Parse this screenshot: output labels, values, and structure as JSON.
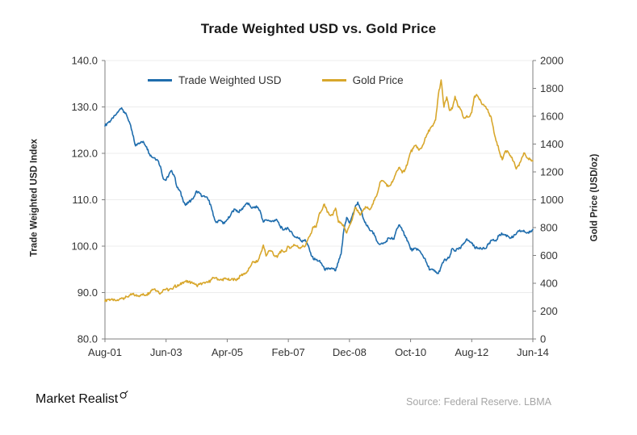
{
  "title": "Trade Weighted USD vs. Gold Price",
  "footer": {
    "brand": "Market Realist",
    "source": "Source: Federal Reserve. LBMA"
  },
  "chart_data": {
    "type": "line",
    "title": "Trade Weighted USD vs. Gold Price",
    "x_start": "Aug-2001",
    "x_end": "Jun-2014",
    "frequency": "monthly",
    "grid": "horizontal-light",
    "legend_position": "top-inside",
    "x_tick_labels": [
      "Aug-01",
      "Jun-03",
      "Apr-05",
      "Feb-07",
      "Dec-08",
      "Oct-10",
      "Aug-12",
      "Jun-14"
    ],
    "left_axis": {
      "label": "Trade Weighted USD Index",
      "min": 80,
      "max": 140,
      "tick_labels": [
        "80.0",
        "90.0",
        "100.0",
        "110.0",
        "120.0",
        "130.0",
        "140.0"
      ]
    },
    "right_axis": {
      "label": "Gold Price (USD/oz)",
      "min": 0,
      "max": 2000,
      "tick_labels": [
        "0",
        "200",
        "400",
        "600",
        "800",
        "1000",
        "1200",
        "1400",
        "1600",
        "1800",
        "2000"
      ]
    },
    "series": [
      {
        "name": "Trade Weighted USD",
        "axis": "left",
        "color": "#1F6DAD",
        "values": [
          125.9,
          126.6,
          127.0,
          127.6,
          128.4,
          129.2,
          129.8,
          128.9,
          127.9,
          126.4,
          124.0,
          121.6,
          122.2,
          122.5,
          122.3,
          121.4,
          119.9,
          119.2,
          119.0,
          118.5,
          117.2,
          114.5,
          114.2,
          115.4,
          116.3,
          115.1,
          112.6,
          111.9,
          110.1,
          108.8,
          109.3,
          109.9,
          110.6,
          111.9,
          111.4,
          110.7,
          110.6,
          110.2,
          109.0,
          106.6,
          105.1,
          105.6,
          105.3,
          104.9,
          105.7,
          106.4,
          107.6,
          107.9,
          107.4,
          107.7,
          108.6,
          109.3,
          108.9,
          108.2,
          108.5,
          108.4,
          107.3,
          105.2,
          105.7,
          105.5,
          105.3,
          105.6,
          105.5,
          104.4,
          103.5,
          103.9,
          103.7,
          103.2,
          102.2,
          101.8,
          101.8,
          100.9,
          101.4,
          100.3,
          98.6,
          97.2,
          97.1,
          96.8,
          96.2,
          95.0,
          95.0,
          95.2,
          95.1,
          94.7,
          96.5,
          98.3,
          103.6,
          106.2,
          105.0,
          106.5,
          108.3,
          109.5,
          108.1,
          105.9,
          104.6,
          103.9,
          103.3,
          102.3,
          101.0,
          100.4,
          100.5,
          100.8,
          101.8,
          101.7,
          101.5,
          103.7,
          104.6,
          103.4,
          102.3,
          101.1,
          99.3,
          99.2,
          99.5,
          99.1,
          98.3,
          97.4,
          96.0,
          94.9,
          94.9,
          94.4,
          94.1,
          95.6,
          96.9,
          97.1,
          97.6,
          99.5,
          99.0,
          99.4,
          99.5,
          100.6,
          101.4,
          101.2,
          100.6,
          99.8,
          99.5,
          99.7,
          99.6,
          99.5,
          100.4,
          101.3,
          101.2,
          101.4,
          102.5,
          102.6,
          102.4,
          102.2,
          101.8,
          102.0,
          102.6,
          103.2,
          103.3,
          103.1,
          102.9,
          103.0,
          103.6
        ]
      },
      {
        "name": "Gold Price",
        "axis": "right",
        "color": "#D8A72C",
        "values": [
          272,
          284,
          283,
          276,
          276,
          281,
          295,
          294,
          302,
          314,
          321,
          313,
          310,
          319,
          317,
          319,
          333,
          357,
          359,
          341,
          328,
          355,
          357,
          351,
          360,
          379,
          379,
          389,
          407,
          414,
          405,
          407,
          403,
          384,
          392,
          398,
          400,
          405,
          420,
          439,
          442,
          424,
          423,
          434,
          429,
          422,
          430,
          424,
          437,
          456,
          470,
          476,
          510,
          550,
          555,
          557,
          611,
          675,
          596,
          634,
          632,
          598,
          586,
          628,
          629,
          631,
          665,
          655,
          679,
          667,
          655,
          665,
          665,
          713,
          754,
          806,
          803,
          890,
          922,
          968,
          910,
          889,
          889,
          940,
          839,
          829,
          807,
          761,
          816,
          858,
          943,
          924,
          890,
          929,
          946,
          934,
          949,
          997,
          1043,
          1127,
          1135,
          1118,
          1095,
          1113,
          1149,
          1205,
          1233,
          1193,
          1216,
          1271,
          1342,
          1370,
          1391,
          1356,
          1373,
          1424,
          1473,
          1511,
          1529,
          1573,
          1756,
          1860,
          1665,
          1739,
          1641,
          1654,
          1743,
          1674,
          1649,
          1591,
          1597,
          1594,
          1626,
          1744,
          1747,
          1721,
          1684,
          1671,
          1628,
          1593,
          1485,
          1414,
          1343,
          1287,
          1347,
          1348,
          1316,
          1276,
          1221,
          1244,
          1301,
          1336,
          1299,
          1288,
          1279
        ]
      }
    ]
  }
}
